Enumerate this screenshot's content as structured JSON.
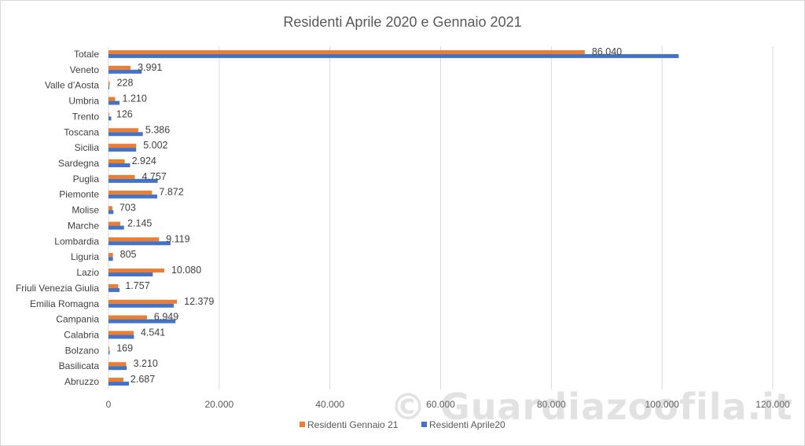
{
  "watermark": "© Guardiazoofila.it",
  "chart_data": {
    "type": "bar",
    "orientation": "horizontal",
    "title": "Residenti Aprile 2020 e Gennaio 2021",
    "categories": [
      "Totale",
      "Veneto",
      "Valle d’Aosta",
      "Umbria",
      "Trento",
      "Toscana",
      "Sicilia",
      "Sardegna",
      "Puglia",
      "Piemonte",
      "Molise",
      "Marche",
      "Lombardia",
      "Liguria",
      "Lazio",
      "Friuli Venezia Giulia",
      "Emilia Romagna",
      "Campania",
      "Calabria",
      "Bolzano",
      "Basilicata",
      "Abruzzo"
    ],
    "series": [
      {
        "name": "Residenti Gennaio 21",
        "color": "#ED7D31",
        "values": [
          86040,
          3991,
          228,
          1210,
          126,
          5386,
          5002,
          2924,
          4757,
          7872,
          703,
          2145,
          9119,
          805,
          10080,
          1757,
          12379,
          6949,
          4541,
          169,
          3210,
          2687
        ],
        "labels": [
          "86.040",
          "3.991",
          "228",
          "1.210",
          "126",
          "5.386",
          "5.002",
          "2.924",
          "4.757",
          "7.872",
          "703",
          "2.145",
          "9.119",
          "805",
          "10.080",
          "1.757",
          "12.379",
          "6.949",
          "4.541",
          "169",
          "3.210",
          "2.687"
        ]
      },
      {
        "name": "Residenti Aprile20",
        "color": "#4472C4",
        "values": [
          103000,
          6000,
          150,
          2000,
          500,
          6200,
          5000,
          3900,
          8900,
          8800,
          900,
          2800,
          11200,
          800,
          8000,
          2000,
          11800,
          12100,
          4600,
          200,
          3300,
          3700
        ]
      }
    ],
    "xlim": [
      0,
      120000
    ],
    "xticks": [
      0,
      20000,
      40000,
      60000,
      80000,
      100000,
      120000
    ],
    "xtick_labels": [
      "0",
      "20.000",
      "40.000",
      "60.000",
      "80.000",
      "100.000",
      "120.000"
    ],
    "grid": true,
    "legend_position": "bottom"
  }
}
